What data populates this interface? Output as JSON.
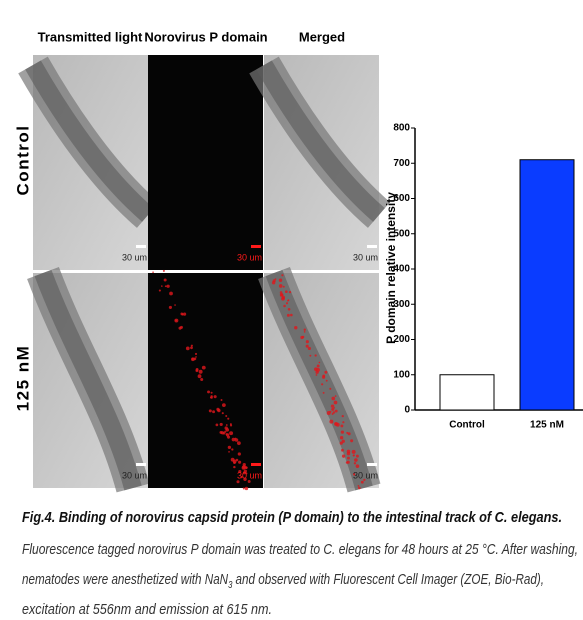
{
  "figure": {
    "column_headers": [
      "Transmitted light",
      "Norovirus P domain",
      "Merged"
    ],
    "row_labels": [
      "Control",
      "125 nM"
    ],
    "scale_bar": "30 um"
  },
  "chart_data": {
    "type": "bar",
    "ylabel": "P domain relative intensity",
    "categories": [
      "Control",
      "125 nM"
    ],
    "values": [
      100,
      710
    ],
    "colors": [
      "#ffffff",
      "#0a3cff"
    ],
    "edgecolor": "#000000",
    "ylim": [
      0,
      800
    ],
    "yticks": [
      0,
      100,
      200,
      300,
      400,
      500,
      600,
      700,
      800
    ]
  },
  "caption": {
    "title": "Fig.4. Binding of norovirus capsid protein (P domain) to the intestinal track of C. elegans.",
    "lines": [
      [
        "Fluorescence tagged norovirus P domain was treated to C. elegans for 48 hours at 25 °C. After washing,"
      ],
      [
        "nematodes were anesthetized with NaN",
        "3",
        "and observed with Fluorescent Cell Imager (ZOE, Bio-Rad),"
      ],
      [
        "excitation at 556nm and emission at 615 nm."
      ]
    ]
  }
}
